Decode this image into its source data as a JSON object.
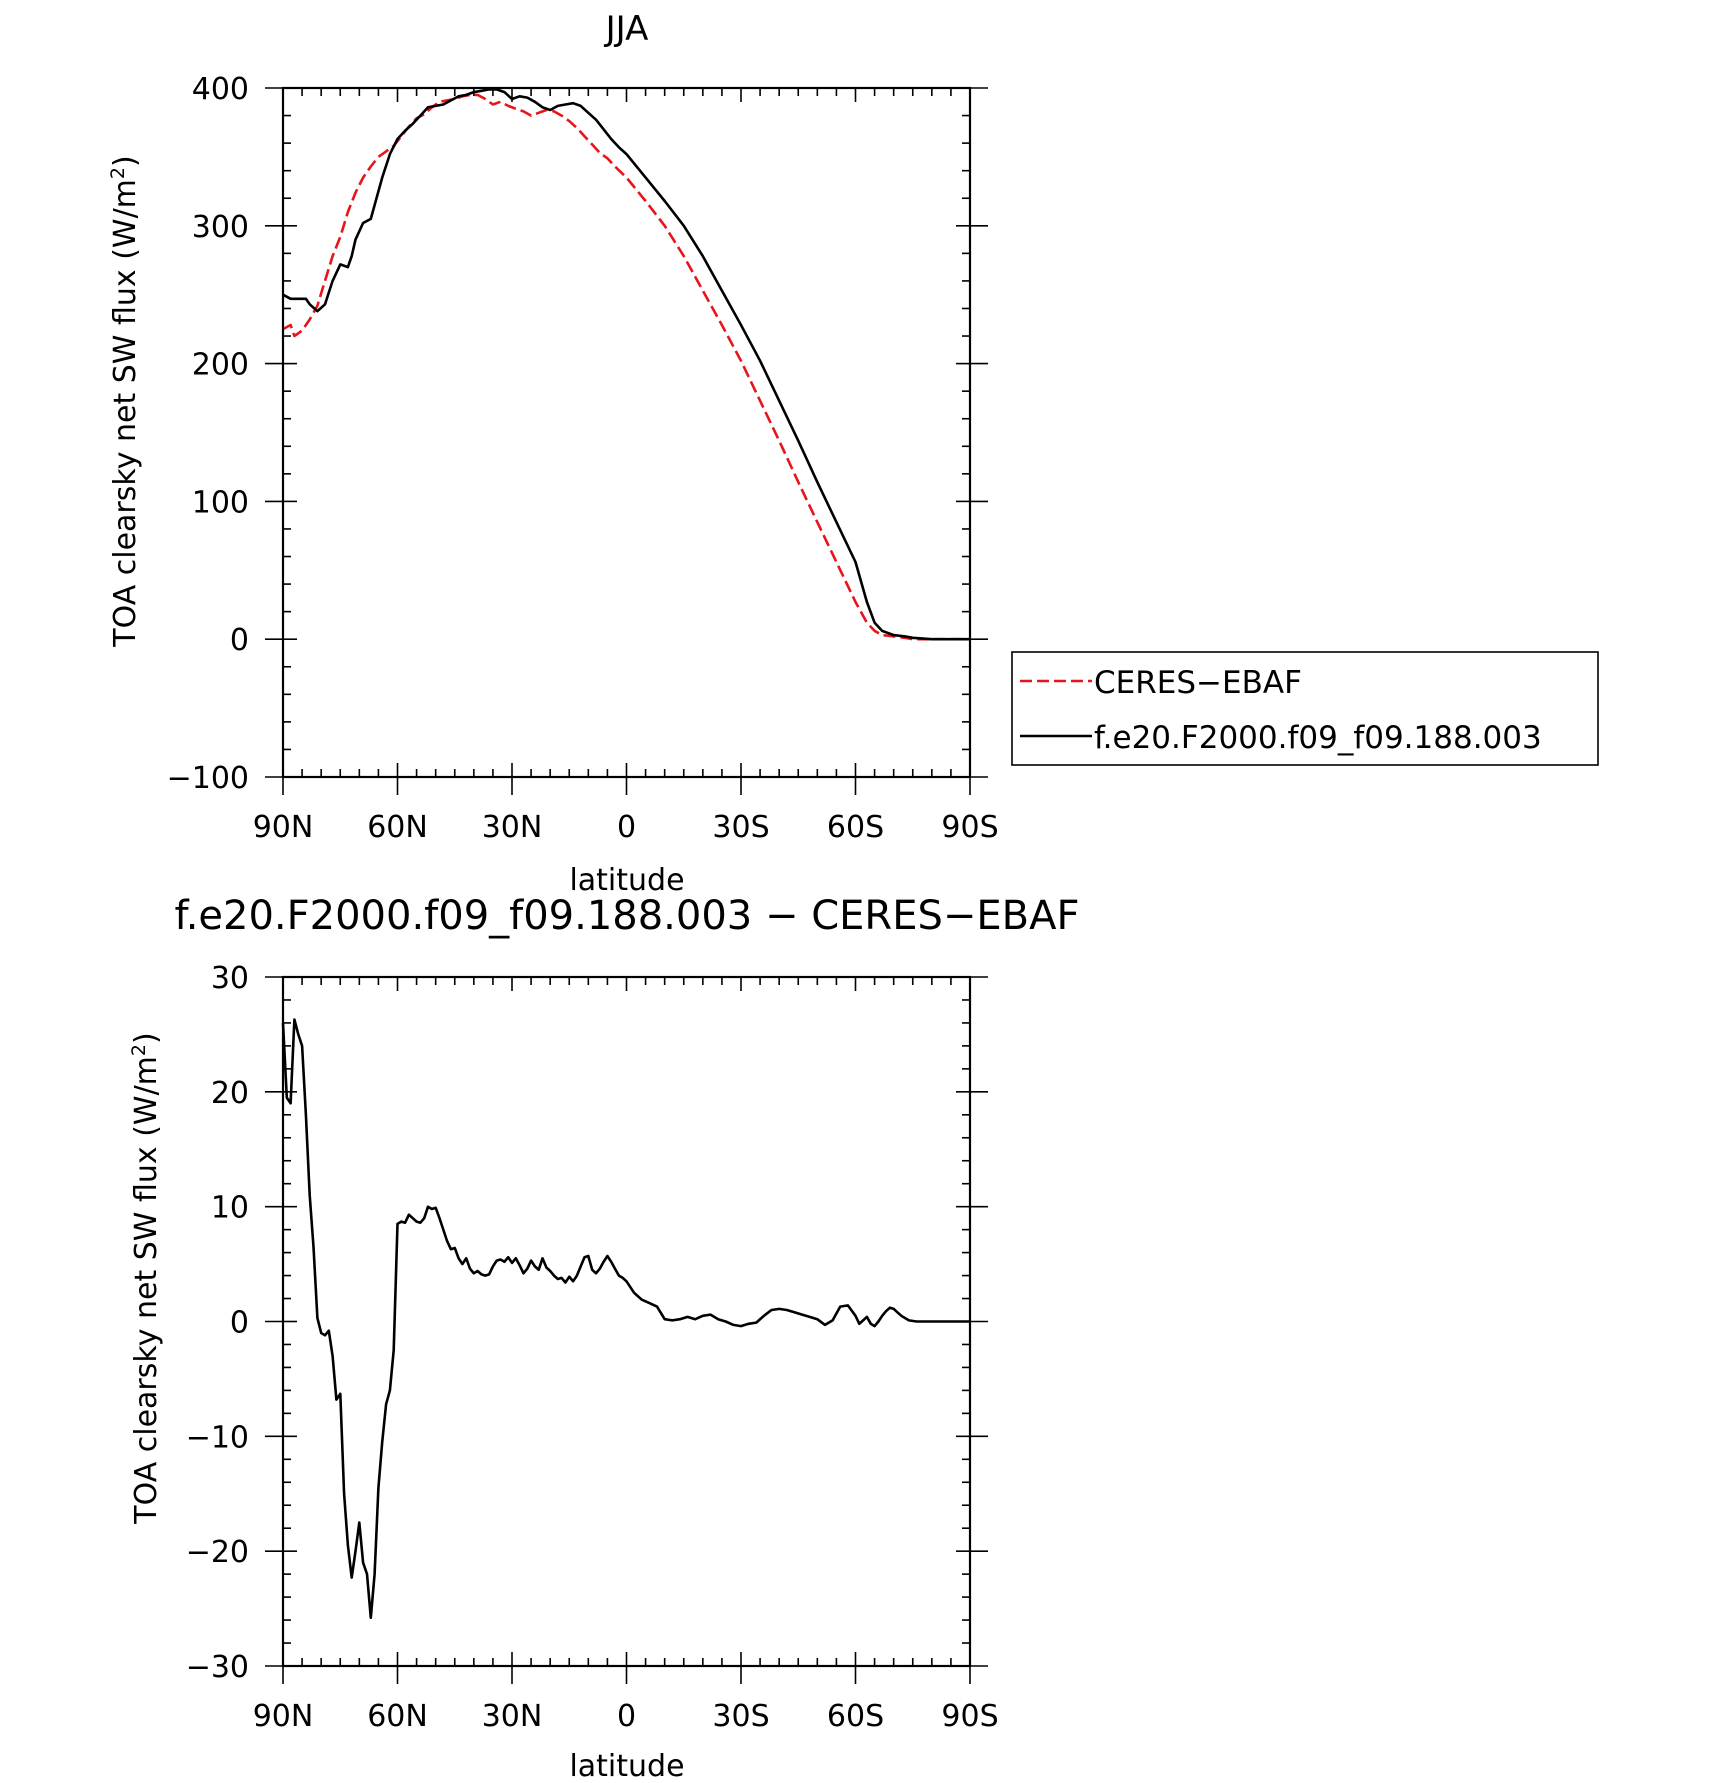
{
  "chart_data": [
    {
      "type": "line",
      "title": "JJA",
      "xlabel": "latitude",
      "ylabel_main": "TOA clearsky net SW flux (W/m",
      "ylabel_sup": "2",
      "ylabel_close": ")",
      "xlim": [
        90,
        -90
      ],
      "ylim": [
        -100,
        400
      ],
      "x_ticks": [
        {
          "value": 90,
          "label": "90N"
        },
        {
          "value": 60,
          "label": "60N"
        },
        {
          "value": 30,
          "label": "30N"
        },
        {
          "value": 0,
          "label": "0"
        },
        {
          "value": -30,
          "label": "30S"
        },
        {
          "value": -60,
          "label": "60S"
        },
        {
          "value": -90,
          "label": "90S"
        }
      ],
      "y_ticks": [
        {
          "value": 400,
          "label": "400"
        },
        {
          "value": 300,
          "label": "300"
        },
        {
          "value": 200,
          "label": "200"
        },
        {
          "value": 100,
          "label": "100"
        },
        {
          "value": 0,
          "label": "0"
        },
        {
          "value": -100,
          "label": "−100"
        }
      ],
      "legend": "right",
      "series": [
        {
          "name": "CERES−EBAF",
          "color": "#e8141c",
          "style": "dashed",
          "x": [
            90,
            88,
            87,
            86,
            85,
            83,
            81,
            79,
            77,
            75,
            73,
            71,
            69,
            67,
            65,
            63,
            61,
            59,
            57,
            55,
            53,
            51,
            49,
            47,
            45,
            43,
            41,
            39,
            37,
            35,
            33,
            31,
            29,
            27,
            25,
            23,
            21,
            19,
            17,
            15,
            13,
            11,
            9,
            7,
            5,
            3,
            0,
            -5,
            -10,
            -15,
            -20,
            -25,
            -30,
            -35,
            -40,
            -45,
            -50,
            -55,
            -60,
            -63,
            -65,
            -67,
            -70,
            -73,
            -75,
            -80,
            -85,
            -90
          ],
          "y": [
            225,
            228,
            220,
            222,
            224,
            232,
            242,
            260,
            278,
            292,
            310,
            324,
            335,
            343,
            350,
            354,
            358,
            365,
            372,
            378,
            381,
            386,
            390,
            391,
            392,
            394,
            395,
            395,
            392,
            388,
            390,
            387,
            385,
            383,
            380,
            382,
            384,
            383,
            380,
            376,
            371,
            365,
            359,
            353,
            349,
            343,
            335,
            318,
            300,
            278,
            253,
            228,
            202,
            173,
            144,
            114,
            85,
            56,
            27,
            12,
            6,
            3,
            2,
            1,
            0,
            0,
            0,
            0
          ]
        },
        {
          "name": "f.e20.F2000.f09_f09.188.003",
          "color": "#000000",
          "style": "solid",
          "x": [
            90,
            88,
            86,
            84,
            83,
            81,
            79,
            77,
            75,
            73,
            72,
            71,
            69,
            67,
            66,
            64,
            62,
            60,
            58,
            56,
            54,
            52,
            50,
            48,
            46,
            44,
            42,
            40,
            38,
            36,
            34,
            32,
            30,
            28,
            26,
            24,
            22,
            20,
            18,
            16,
            14,
            12,
            10,
            8,
            6,
            4,
            2,
            0,
            -5,
            -10,
            -15,
            -20,
            -25,
            -30,
            -35,
            -40,
            -45,
            -50,
            -55,
            -60,
            -63,
            -65,
            -67,
            -70,
            -73,
            -75,
            -80,
            -85,
            -90
          ],
          "y": [
            250,
            247,
            247,
            247,
            243,
            238,
            243,
            260,
            272,
            270,
            278,
            290,
            302,
            305,
            315,
            335,
            352,
            363,
            369,
            374,
            380,
            386,
            387,
            388,
            391,
            394,
            395,
            397,
            398,
            399,
            399,
            397,
            392,
            394,
            393,
            390,
            386,
            384,
            387,
            388,
            389,
            387,
            382,
            377,
            370,
            363,
            357,
            352,
            335,
            318,
            300,
            278,
            253,
            228,
            202,
            173,
            144,
            114,
            85,
            56,
            27,
            12,
            6,
            3,
            2,
            1,
            0,
            0,
            0
          ]
        }
      ]
    },
    {
      "type": "line",
      "title": "f.e20.F2000.f09_f09.188.003 − CERES−EBAF",
      "xlabel": "latitude",
      "ylabel_main": "TOA clearsky net SW flux (W/m",
      "ylabel_sup": "2",
      "ylabel_close": ")",
      "xlim": [
        90,
        -90
      ],
      "ylim": [
        -30,
        30
      ],
      "x_ticks": [
        {
          "value": 90,
          "label": "90N"
        },
        {
          "value": 60,
          "label": "60N"
        },
        {
          "value": 30,
          "label": "30N"
        },
        {
          "value": 0,
          "label": "0"
        },
        {
          "value": -30,
          "label": "30S"
        },
        {
          "value": -60,
          "label": "60S"
        },
        {
          "value": -90,
          "label": "90S"
        }
      ],
      "y_ticks": [
        {
          "value": 30,
          "label": "30"
        },
        {
          "value": 20,
          "label": "20"
        },
        {
          "value": 10,
          "label": "10"
        },
        {
          "value": 0,
          "label": "0"
        },
        {
          "value": -10,
          "label": "−10"
        },
        {
          "value": -20,
          "label": "−20"
        },
        {
          "value": -30,
          "label": "−30"
        }
      ],
      "series": [
        {
          "name": "",
          "color": "#000000",
          "style": "solid",
          "x": [
            90,
            89,
            88,
            87,
            86,
            85,
            84,
            83,
            82,
            81,
            80,
            79,
            78,
            77,
            76,
            75,
            74,
            73,
            72,
            71,
            70,
            69,
            68,
            67,
            66,
            65,
            64,
            63,
            62,
            61,
            60,
            59,
            58,
            57,
            56,
            55,
            54,
            53,
            52,
            51,
            50,
            49,
            48,
            47,
            46,
            45,
            44,
            43,
            42,
            41,
            40,
            39,
            38,
            37,
            36,
            35,
            34,
            33,
            32,
            31,
            30,
            29,
            28,
            27,
            26,
            25,
            24,
            23,
            22,
            21,
            20,
            19,
            18,
            17,
            16,
            15,
            14,
            13,
            12,
            11,
            10,
            9,
            8,
            7,
            6,
            5,
            4,
            3,
            2,
            1,
            0,
            -2,
            -4,
            -6,
            -8,
            -10,
            -12,
            -14,
            -16,
            -18,
            -20,
            -22,
            -24,
            -26,
            -28,
            -30,
            -32,
            -34,
            -36,
            -38,
            -40,
            -42,
            -44,
            -46,
            -48,
            -50,
            -52,
            -54,
            -56,
            -58,
            -60,
            -61,
            -62,
            -63,
            -64,
            -65,
            -66,
            -67,
            -68,
            -69,
            -70,
            -72,
            -74,
            -76,
            -78,
            -80,
            -82,
            -85,
            -90
          ],
          "y": [
            26,
            19.5,
            19,
            26.3,
            25,
            24,
            18,
            11,
            6.5,
            0.3,
            -1,
            -1.2,
            -0.8,
            -3,
            -6.8,
            -6.3,
            -15,
            -19.5,
            -22.3,
            -20,
            -17.5,
            -21,
            -22,
            -25.8,
            -22,
            -14.5,
            -10.5,
            -7.2,
            -6,
            -2.5,
            8.5,
            8.7,
            8.6,
            9.3,
            9,
            8.7,
            8.6,
            9,
            10,
            9.8,
            9.9,
            9,
            8,
            7,
            6.3,
            6.4,
            5.5,
            5,
            5.5,
            4.6,
            4.2,
            4.4,
            4.1,
            4,
            4.1,
            4.8,
            5.3,
            5.4,
            5.2,
            5.6,
            5.1,
            5.5,
            4.9,
            4.2,
            4.6,
            5.3,
            4.8,
            4.5,
            5.5,
            4.7,
            4.4,
            4,
            3.7,
            3.8,
            3.4,
            3.9,
            3.5,
            4,
            4.8,
            5.6,
            5.7,
            4.5,
            4.2,
            4.6,
            5.2,
            5.7,
            5.2,
            4.6,
            4,
            3.8,
            3.5,
            2.5,
            1.9,
            1.6,
            1.3,
            0.2,
            0.1,
            0.2,
            0.4,
            0.2,
            0.5,
            0.6,
            0.2,
            0,
            -0.3,
            -0.4,
            -0.2,
            -0.1,
            0.5,
            1,
            1.1,
            1,
            0.8,
            0.6,
            0.4,
            0.2,
            -0.3,
            0.1,
            1.3,
            1.4,
            0.5,
            -0.2,
            0.1,
            0.4,
            -0.2,
            -0.4,
            0,
            0.5,
            0.9,
            1.2,
            1.1,
            0.5,
            0.1,
            0,
            0,
            0,
            0,
            0,
            0
          ]
        }
      ]
    }
  ]
}
